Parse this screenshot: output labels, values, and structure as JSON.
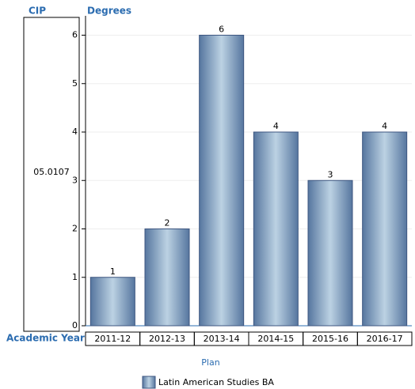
{
  "chart_data": {
    "type": "bar",
    "row_header": "CIP",
    "row_label": "05.0107",
    "y_axis_label": "Degrees",
    "x_axis_label": "Academic Year",
    "categories": [
      "2011-12",
      "2012-13",
      "2013-14",
      "2014-15",
      "2015-16",
      "2016-17"
    ],
    "series": [
      {
        "name": "Latin American Studies BA",
        "color": "#8eaed0",
        "values": [
          1,
          2,
          6,
          4,
          3,
          4
        ]
      }
    ],
    "legend_title": "Plan",
    "ylim": [
      0,
      6.4
    ],
    "yticks": [
      0,
      1,
      2,
      3,
      4,
      5,
      6
    ],
    "grid": true
  }
}
